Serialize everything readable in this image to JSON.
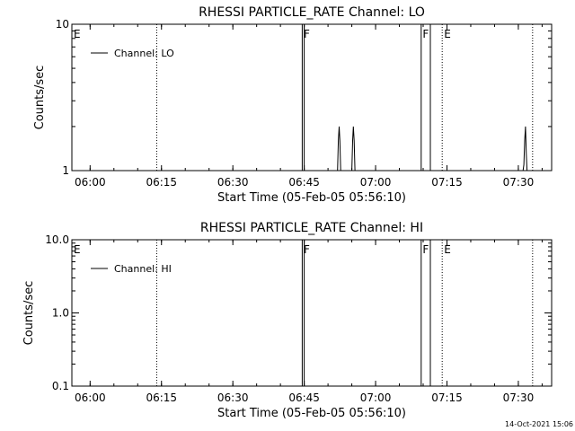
{
  "footer": {
    "timestamp": "14-Oct-2021 15:06"
  },
  "chart_data": [
    {
      "type": "line",
      "title": "RHESSI PARTICLE_RATE Channel: LO",
      "xlabel": "Start Time (05-Feb-05 05:56:10)",
      "ylabel": "Counts/sec",
      "yscale": "log",
      "xlim": [
        "05:56:10",
        "07:37:00"
      ],
      "ylim": [
        1,
        10
      ],
      "x_ticks": [
        "06:00",
        "06:15",
        "06:30",
        "06:45",
        "07:00",
        "07:15",
        "07:30"
      ],
      "y_ticks": [
        "1",
        "10"
      ],
      "legend": {
        "placement": "top-left",
        "entries": [
          "Channel: LO"
        ]
      },
      "grid": false,
      "series": [
        {
          "name": "Channel: LO",
          "x": [
            "06:44:30",
            "06:44:35",
            "06:44:35",
            "06:45:00",
            "06:45:00",
            "06:45:05",
            "06:52:00",
            "06:52:10",
            "06:52:20",
            "06:52:30",
            "06:52:40",
            "06:55:00",
            "06:55:10",
            "06:55:20",
            "06:55:30",
            "06:55:40",
            "07:09:30",
            "07:09:35",
            "07:09:35",
            "07:11:30",
            "07:11:30",
            "07:11:35",
            "07:31:00",
            "07:31:10",
            "07:31:20",
            "07:31:30",
            "07:31:40",
            "07:31:50"
          ],
          "values": [
            1,
            1,
            10,
            10,
            1,
            1,
            1,
            1.6,
            2.0,
            1.6,
            1,
            1,
            1.6,
            2.0,
            1.6,
            1,
            1,
            1,
            10,
            10,
            1,
            1,
            1,
            1.1,
            1.6,
            2.0,
            1.3,
            1
          ]
        }
      ],
      "annotations": [
        {
          "x": "05:56:10",
          "label": "E",
          "line": false
        },
        {
          "x": "06:14:00",
          "label": "",
          "line": true
        },
        {
          "x": "06:44:30",
          "label": "F",
          "line": false
        },
        {
          "x": "07:09:30",
          "label": "F",
          "line": false
        },
        {
          "x": "07:14:00",
          "label": "E",
          "line": true
        },
        {
          "x": "07:33:00",
          "label": "",
          "line": true
        }
      ]
    },
    {
      "type": "line",
      "title": "RHESSI PARTICLE_RATE Channel: HI",
      "xlabel": "Start Time (05-Feb-05 05:56:10)",
      "ylabel": "Counts/sec",
      "yscale": "log",
      "xlim": [
        "05:56:10",
        "07:37:00"
      ],
      "ylim": [
        0.1,
        10
      ],
      "x_ticks": [
        "06:00",
        "06:15",
        "06:30",
        "06:45",
        "07:00",
        "07:15",
        "07:30"
      ],
      "y_ticks": [
        "0.1",
        "1.0",
        "10.0"
      ],
      "legend": {
        "placement": "top-left",
        "entries": [
          "Channel: HI"
        ]
      },
      "grid": false,
      "series": [
        {
          "name": "Channel: HI",
          "x": [
            "06:44:30",
            "06:44:35",
            "06:44:35",
            "06:45:00",
            "06:45:00",
            "06:45:05",
            "07:09:30",
            "07:09:35",
            "07:09:35",
            "07:11:30",
            "07:11:30",
            "07:11:35"
          ],
          "values": [
            0.1,
            0.1,
            10,
            10,
            0.1,
            0.1,
            0.1,
            0.1,
            10,
            10,
            0.1,
            0.1
          ]
        }
      ],
      "annotations": [
        {
          "x": "05:56:10",
          "label": "E",
          "line": false
        },
        {
          "x": "06:14:00",
          "label": "",
          "line": true
        },
        {
          "x": "06:44:30",
          "label": "F",
          "line": false
        },
        {
          "x": "07:09:30",
          "label": "F",
          "line": false
        },
        {
          "x": "07:14:00",
          "label": "E",
          "line": true
        },
        {
          "x": "07:33:00",
          "label": "",
          "line": true
        }
      ]
    }
  ]
}
